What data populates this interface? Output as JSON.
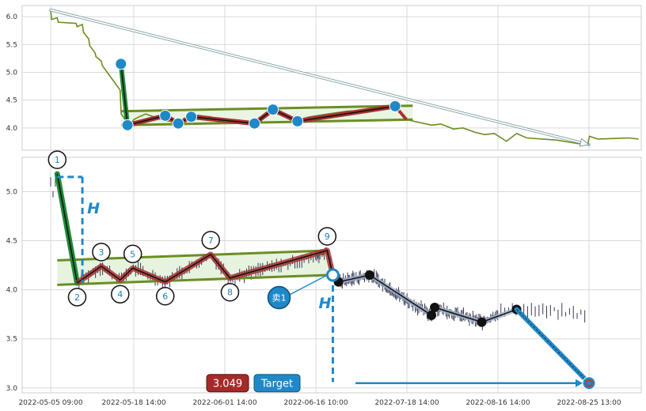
{
  "chart_data": [
    {
      "panel": "overview",
      "type": "line",
      "ylim": [
        3.6,
        6.2
      ],
      "y_ticks": [
        "6.0",
        "5.5",
        "5.0",
        "4.5",
        "4.0"
      ],
      "grid": true,
      "colors": {
        "price": "#6b8e23",
        "marker": "#1f88c8",
        "trend_arrow": "#7a9aa0",
        "zigzag": "#a83232",
        "band": "#6b8e23"
      },
      "price_line": [
        [
          "2022-05-05 09:00",
          6.1
        ],
        [
          "2022-05-05 13:00",
          5.95
        ],
        [
          "2022-05-06 10:00",
          5.98
        ],
        [
          "2022-05-06 14:00",
          5.9
        ],
        [
          "2022-05-09 10:00",
          5.88
        ],
        [
          "2022-05-09 14:00",
          5.82
        ],
        [
          "2022-05-10 10:00",
          5.86
        ],
        [
          "2022-05-10 14:00",
          5.72
        ],
        [
          "2022-05-11 10:00",
          5.6
        ],
        [
          "2022-05-11 14:00",
          5.48
        ],
        [
          "2022-05-12 10:00",
          5.35
        ],
        [
          "2022-05-12 14:00",
          5.28
        ],
        [
          "2022-05-13 10:00",
          5.2
        ],
        [
          "2022-05-13 14:00",
          5.12
        ],
        [
          "2022-05-16 10:00",
          4.68
        ],
        [
          "2022-05-16 13:00",
          4.34
        ],
        [
          "2022-05-16 14:00",
          4.25
        ],
        [
          "2022-05-17 10:00",
          4.12
        ],
        [
          "2022-05-17 14:00",
          4.05
        ],
        [
          "2022-05-18 10:00",
          4.12
        ],
        [
          "2022-05-18 14:00",
          4.15
        ],
        [
          "2022-05-19 10:00",
          4.2
        ],
        [
          "2022-05-20 10:00",
          4.25
        ],
        [
          "2022-05-23 10:00",
          4.13
        ],
        [
          "2022-05-25 10:00",
          4.1
        ],
        [
          "2022-05-27 10:00",
          4.24
        ],
        [
          "2022-05-30 10:00",
          4.2
        ],
        [
          "2022-06-01 10:00",
          4.12
        ],
        [
          "2022-06-06 10:00",
          4.1
        ],
        [
          "2022-06-08 10:00",
          4.25
        ],
        [
          "2022-06-09 10:00",
          4.33
        ],
        [
          "2022-06-10 10:00",
          4.24
        ],
        [
          "2022-06-13 10:00",
          4.14
        ],
        [
          "2022-06-15 10:00",
          4.2
        ],
        [
          "2022-06-20 10:00",
          4.25
        ],
        [
          "2022-06-27 10:00",
          4.3
        ],
        [
          "2022-07-04 10:00",
          4.32
        ],
        [
          "2022-07-11 10:00",
          4.38
        ],
        [
          "2022-07-13 10:00",
          4.4
        ],
        [
          "2022-07-14 14:00",
          4.35
        ],
        [
          "2022-07-18 10:00",
          4.15
        ],
        [
          "2022-07-22 10:00",
          4.1
        ],
        [
          "2022-07-26 10:00",
          4.05
        ],
        [
          "2022-07-29 10:00",
          4.07
        ],
        [
          "2022-08-02 10:00",
          3.98
        ],
        [
          "2022-08-05 10:00",
          4.0
        ],
        [
          "2022-08-09 10:00",
          3.92
        ],
        [
          "2022-08-12 10:00",
          3.88
        ],
        [
          "2022-08-15 10:00",
          3.9
        ],
        [
          "2022-08-17 10:00",
          3.76
        ],
        [
          "2022-08-18 10:00",
          3.9
        ],
        [
          "2022-08-19 10:00",
          3.82
        ],
        [
          "2022-08-22 10:00",
          3.78
        ],
        [
          "2022-08-23 10:00",
          3.75
        ],
        [
          "2022-08-24 10:00",
          3.72
        ],
        [
          "2022-08-25 10:00",
          3.7
        ],
        [
          "2022-08-25 14:00",
          3.85
        ],
        [
          "2022-08-26 10:00",
          3.8
        ],
        [
          "2022-08-29 10:00",
          3.82
        ],
        [
          "2022-08-30 10:00",
          3.8
        ]
      ],
      "trend_arrow": {
        "from": [
          "2022-05-05 09:00",
          6.12
        ],
        "to": [
          "2022-08-25 13:00",
          3.7
        ]
      },
      "impulse": {
        "from": [
          "2022-05-16 13:00",
          5.15
        ],
        "to": [
          "2022-05-17 14:00",
          4.05
        ]
      },
      "band_lines": [
        {
          "from": [
            "2022-05-16 14:00",
            4.3
          ],
          "to": [
            "2022-07-20 10:00",
            4.4
          ]
        },
        {
          "from": [
            "2022-05-16 14:00",
            4.05
          ],
          "to": [
            "2022-07-20 10:00",
            4.15
          ]
        }
      ],
      "pivots": [
        [
          "2022-05-16 13:00",
          5.15
        ],
        [
          "2022-05-17 14:00",
          4.05
        ],
        [
          "2022-05-23 10:00",
          4.22
        ],
        [
          "2022-05-25 10:00",
          4.08
        ],
        [
          "2022-05-27 10:00",
          4.2
        ],
        [
          "2022-06-06 10:00",
          4.08
        ],
        [
          "2022-06-09 10:00",
          4.33
        ],
        [
          "2022-06-13 10:00",
          4.12
        ],
        [
          "2022-07-14 10:00",
          4.39
        ]
      ]
    },
    {
      "panel": "detail",
      "type": "line",
      "ylim": [
        2.95,
        5.35
      ],
      "y_ticks": [
        "5.0",
        "4.5",
        "4.0",
        "3.5",
        "3.0"
      ],
      "x_tick_labels": [
        "2022-05-05 09:00",
        "2022-05-18 14:00",
        "2022-06-01 14:00",
        "2022-06-16 10:00",
        "2022-07-18 14:00",
        "2022-08-16 14:00",
        "2022-08-25 13:00"
      ],
      "grid": true,
      "colors": {
        "candles": "#3a3a5a",
        "leg": "#208a3a",
        "zigzag": "#a83232",
        "band": "#6b8e23",
        "band_fill": "#e3f2dc",
        "projection": "#1f88c8",
        "marker_ring": "#1f88c8"
      },
      "waves": [
        {
          "label": "1",
          "time": "2022-05-06 10:00",
          "value": 5.18
        },
        {
          "label": "2",
          "time": "2022-05-09 14:00",
          "value": 4.07
        },
        {
          "label": "3",
          "time": "2022-05-13 10:00",
          "value": 4.24
        },
        {
          "label": "4",
          "time": "2022-05-16 10:00",
          "value": 4.1
        },
        {
          "label": "5",
          "time": "2022-05-18 10:00",
          "value": 4.22
        },
        {
          "label": "6",
          "time": "2022-05-23 10:00",
          "value": 4.08
        },
        {
          "label": "7",
          "time": "2022-05-30 10:00",
          "value": 4.36
        },
        {
          "label": "8",
          "time": "2022-06-02 10:00",
          "value": 4.12
        },
        {
          "label": "9",
          "time": "2022-06-20 10:00",
          "value": 4.4
        }
      ],
      "band_lines": [
        {
          "from": [
            "2022-05-06 10:00",
            4.3
          ],
          "to": [
            "2022-06-20 14:00",
            4.4
          ]
        },
        {
          "from": [
            "2022-05-06 10:00",
            4.05
          ],
          "to": [
            "2022-06-20 14:00",
            4.15
          ]
        }
      ],
      "h_label": "H",
      "h_marker_1": {
        "time": "2022-05-10 10:00",
        "from": 5.15,
        "to": 4.07
      },
      "h_marker_2": {
        "time": "2022-06-22 10:00",
        "from": 4.15,
        "to": 3.06
      },
      "breakout": {
        "time": "2022-06-22 10:00",
        "value": 4.15
      },
      "sell_signal": {
        "label": "卖1",
        "time": "2022-06-10 10:00",
        "value": 3.92
      },
      "forecast_path": [
        [
          "2022-06-22 10:00",
          4.15
        ],
        [
          "2022-06-24 10:00",
          4.08
        ],
        [
          "2022-07-05 10:00",
          4.15
        ],
        [
          "2022-07-26 10:00",
          3.74
        ],
        [
          "2022-07-27 10:00",
          3.82
        ],
        [
          "2022-08-11 10:00",
          3.67
        ],
        [
          "2022-08-18 10:00",
          3.8
        ]
      ],
      "target_path": {
        "from": [
          "2022-08-18 10:00",
          3.8
        ],
        "to": [
          "2022-08-25 13:00",
          3.049
        ]
      },
      "target": {
        "label": "Target",
        "value": "3.049",
        "time": "2022-08-25 13:00",
        "price": 3.049,
        "line_from_time": "2022-06-30 10:00"
      }
    }
  ]
}
